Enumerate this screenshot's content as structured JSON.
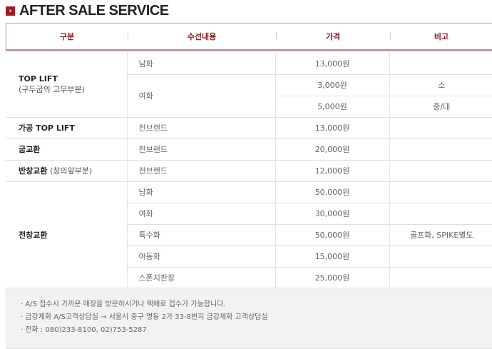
{
  "title": "AFTER SALE SERVICE",
  "title_icon": "chevron-right-icon",
  "accent": "#a01c24",
  "headers": [
    "구분",
    "수선내용",
    "가격",
    "비고"
  ],
  "rows": {
    "top_lift": {
      "label": "TOP LIFT",
      "sub": "(구두굽의 고무부분)",
      "items": [
        {
          "content": "남화",
          "price": "13,000원",
          "note": ""
        },
        {
          "content": "여화",
          "price": "3,000원",
          "note": "소"
        },
        {
          "price": "5,000원",
          "note": "중/대"
        }
      ]
    },
    "gaho": {
      "label": "가공 TOP LIFT",
      "content": "전브랜드",
      "price": "13,000원",
      "note": ""
    },
    "gup": {
      "label": "굽교환",
      "content": "전브랜드",
      "price": "20,000원",
      "note": ""
    },
    "banchang": {
      "label": "반창교환",
      "sub": "(창의앞부분)",
      "content": "전브랜드",
      "price": "12,000원",
      "note": ""
    },
    "jeonchang": {
      "label": "전창교환",
      "items": [
        {
          "content": "남화",
          "price": "50,000원",
          "note": ""
        },
        {
          "content": "여화",
          "price": "30,000원",
          "note": ""
        },
        {
          "content": "특수화",
          "price": "50,000원",
          "note": "골프화, SPIKE별도"
        },
        {
          "content": "아동화",
          "price": "15,000원",
          "note": ""
        },
        {
          "content": "스폰지판창",
          "price": "25,000원",
          "note": ""
        }
      ]
    }
  },
  "notes": [
    "· A/S 접수시 가까운 매장을 방문하시거나 택배로 접수가 가능합니다.",
    "· 금강제화 A/S고객상담실 → 서울시 중구 명동 2가 33-8번지 금강제화 고객상담실",
    "· 전화 : 080)233-8100, 02)753-5287"
  ]
}
